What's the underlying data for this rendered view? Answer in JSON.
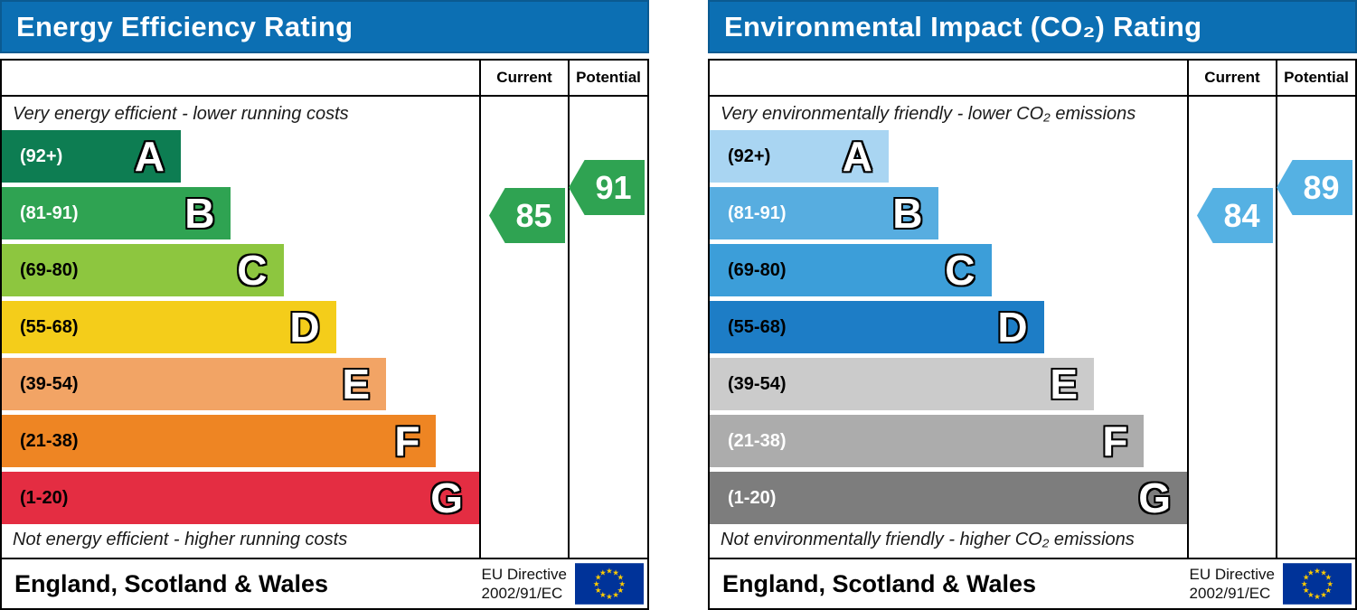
{
  "panels": [
    {
      "title": "Energy Efficiency Rating",
      "title_bg": "#0c6fb3",
      "columns": {
        "current": "Current",
        "potential": "Potential"
      },
      "captions": {
        "top": "Very energy efficient - lower running costs",
        "bottom": "Not energy efficient - higher running costs"
      },
      "bands": [
        {
          "letter": "A",
          "range": "(92+)",
          "color": "#0d7d52",
          "text_color": "#ffffff",
          "width_pct": 37.5
        },
        {
          "letter": "B",
          "range": "(81-91)",
          "color": "#2fa352",
          "text_color": "#ffffff",
          "width_pct": 48
        },
        {
          "letter": "C",
          "range": "(69-80)",
          "color": "#8dc63f",
          "text_color": "#000000",
          "width_pct": 59
        },
        {
          "letter": "D",
          "range": "(55-68)",
          "color": "#f4cd1a",
          "text_color": "#000000",
          "width_pct": 70
        },
        {
          "letter": "E",
          "range": "(39-54)",
          "color": "#f2a465",
          "text_color": "#000000",
          "width_pct": 80.5
        },
        {
          "letter": "F",
          "range": "(21-38)",
          "color": "#ee8523",
          "text_color": "#000000",
          "width_pct": 91
        },
        {
          "letter": "G",
          "range": "(1-20)",
          "color": "#e42d42",
          "text_color": "#000000",
          "width_pct": 100
        }
      ],
      "current": {
        "value": "85",
        "color": "#2fa352"
      },
      "potential": {
        "value": "91",
        "color": "#2fa352"
      },
      "footer": {
        "region": "England, Scotland & Wales",
        "directive_line1": "EU Directive",
        "directive_line2": "2002/91/EC"
      }
    },
    {
      "title": "Environmental Impact (CO₂) Rating",
      "title_bg": "#0c6fb3",
      "columns": {
        "current": "Current",
        "potential": "Potential"
      },
      "captions": {
        "top": "Very environmentally friendly - lower CO₂ emissions",
        "bottom": "Not environmentally friendly - higher CO₂ emissions"
      },
      "bands": [
        {
          "letter": "A",
          "range": "(92+)",
          "color": "#a9d5f2",
          "text_color": "#000000",
          "width_pct": 37.5
        },
        {
          "letter": "B",
          "range": "(81-91)",
          "color": "#57ade0",
          "text_color": "#ffffff",
          "width_pct": 48
        },
        {
          "letter": "C",
          "range": "(69-80)",
          "color": "#3c9ed9",
          "text_color": "#000000",
          "width_pct": 59
        },
        {
          "letter": "D",
          "range": "(55-68)",
          "color": "#1d7dc6",
          "text_color": "#000000",
          "width_pct": 70
        },
        {
          "letter": "E",
          "range": "(39-54)",
          "color": "#cbcbcb",
          "text_color": "#000000",
          "width_pct": 80.5
        },
        {
          "letter": "F",
          "range": "(21-38)",
          "color": "#acacac",
          "text_color": "#ffffff",
          "width_pct": 91
        },
        {
          "letter": "G",
          "range": "(1-20)",
          "color": "#7d7d7d",
          "text_color": "#ffffff",
          "width_pct": 100
        }
      ],
      "current": {
        "value": "84",
        "color": "#55b1e3"
      },
      "potential": {
        "value": "89",
        "color": "#55b1e3"
      },
      "footer": {
        "region": "England, Scotland & Wales",
        "directive_line1": "EU Directive",
        "directive_line2": "2002/91/EC"
      }
    }
  ],
  "chart_data": [
    {
      "type": "bar",
      "title": "Energy Efficiency Rating",
      "orientation": "horizontal",
      "categories": [
        "A",
        "B",
        "C",
        "D",
        "E",
        "F",
        "G"
      ],
      "band_ranges": [
        "92+",
        "81-91",
        "69-80",
        "55-68",
        "39-54",
        "21-38",
        "1-20"
      ],
      "bar_lengths_pct_of_area": [
        37.5,
        48,
        59,
        70,
        80.5,
        91,
        100
      ],
      "band_colors": [
        "#0d7d52",
        "#2fa352",
        "#8dc63f",
        "#f4cd1a",
        "#f2a465",
        "#ee8523",
        "#e42d42"
      ],
      "current_rating": 85,
      "current_band": "B",
      "potential_rating": 91,
      "potential_band": "B",
      "annotation_top": "Very energy efficient - lower running costs",
      "annotation_bottom": "Not energy efficient - higher running costs",
      "region": "England, Scotland & Wales",
      "directive": "EU Directive 2002/91/EC"
    },
    {
      "type": "bar",
      "title": "Environmental Impact (CO₂) Rating",
      "orientation": "horizontal",
      "categories": [
        "A",
        "B",
        "C",
        "D",
        "E",
        "F",
        "G"
      ],
      "band_ranges": [
        "92+",
        "81-91",
        "69-80",
        "55-68",
        "39-54",
        "21-38",
        "1-20"
      ],
      "bar_lengths_pct_of_area": [
        37.5,
        48,
        59,
        70,
        80.5,
        91,
        100
      ],
      "band_colors": [
        "#a9d5f2",
        "#57ade0",
        "#3c9ed9",
        "#1d7dc6",
        "#cbcbcb",
        "#acacac",
        "#7d7d7d"
      ],
      "current_rating": 84,
      "current_band": "B",
      "potential_rating": 89,
      "potential_band": "B",
      "annotation_top": "Very environmentally friendly - lower CO₂ emissions",
      "annotation_bottom": "Not environmentally friendly - higher CO₂ emissions",
      "region": "England, Scotland & Wales",
      "directive": "EU Directive 2002/91/EC"
    }
  ]
}
